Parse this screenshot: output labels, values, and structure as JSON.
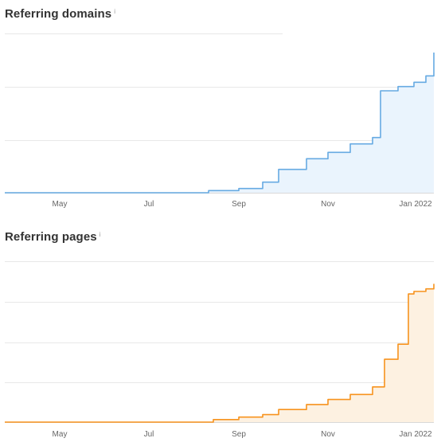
{
  "chart_data": [
    {
      "type": "area",
      "title": "Referring domains",
      "info_icon": "info-icon",
      "color": "#66aae2",
      "fill": "#eaf4fd",
      "xlabel": "",
      "ylabel": "",
      "x_tick_labels": [
        "May",
        "Jul",
        "Sep",
        "Nov",
        "Jan 2022"
      ],
      "x": [
        "Apr",
        "May",
        "Jun",
        "Jul",
        "Aug",
        "Aug-20",
        "Sep",
        "Sep-15",
        "Oct",
        "Oct-15",
        "Nov",
        "Nov-15",
        "Nov-25",
        "Dec",
        "Dec-15",
        "Jan",
        "Jan-15",
        "Jan-25"
      ],
      "values": [
        0,
        0,
        0,
        0,
        0,
        1,
        2,
        5,
        11,
        16,
        19,
        23,
        26,
        48,
        50,
        52,
        55,
        66
      ],
      "ylim": [
        0,
        75
      ],
      "grid": true
    },
    {
      "type": "area",
      "title": "Referring pages",
      "info_icon": "info-icon",
      "color": "#f7931e",
      "fill": "#fdf1e1",
      "xlabel": "",
      "ylabel": "",
      "x_tick_labels": [
        "May",
        "Jul",
        "Sep",
        "Nov",
        "Jan 2022"
      ],
      "x": [
        "Apr",
        "May",
        "Jun",
        "Jul",
        "Aug",
        "Aug-25",
        "Sep",
        "Sep-15",
        "Oct",
        "Oct-15",
        "Nov",
        "Nov-15",
        "Nov-25",
        "Dec",
        "Dec-15",
        "Dec-25",
        "Jan",
        "Jan-15",
        "Jan-25"
      ],
      "values": [
        0,
        0,
        0,
        0,
        0,
        1,
        2,
        3,
        5,
        7,
        9,
        11,
        14,
        25,
        31,
        51,
        52,
        53,
        55
      ],
      "ylim": [
        0,
        64
      ],
      "grid": true
    }
  ]
}
